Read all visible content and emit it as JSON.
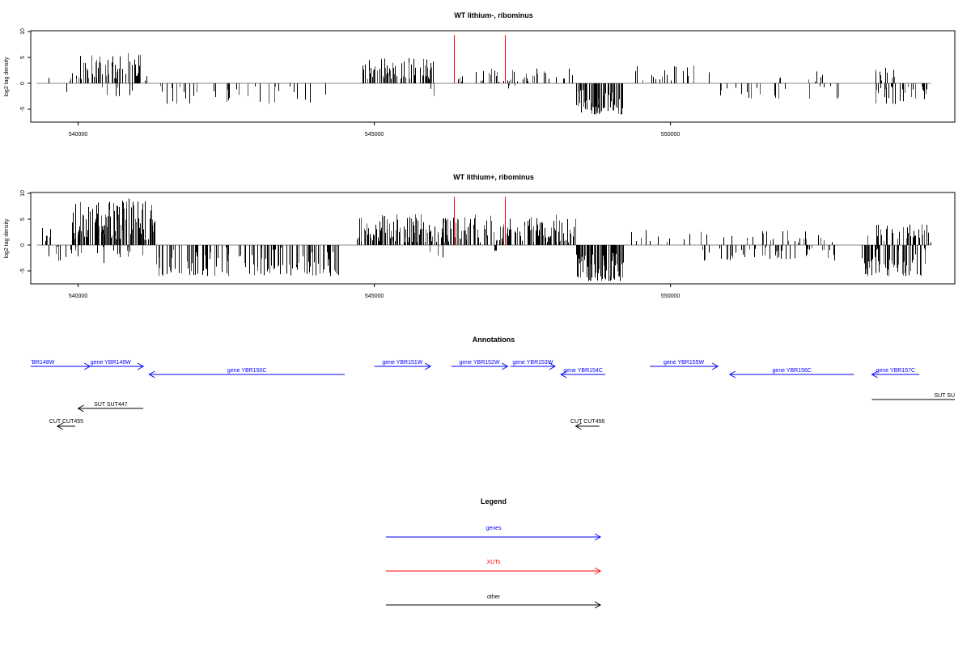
{
  "colors": {
    "genes": "#0000ff",
    "xuts": "#ff0000",
    "other": "#000000"
  },
  "chart_data": [
    {
      "type": "bar",
      "title": "WT lithium-, ribominus",
      "xlabel": "",
      "ylabel": "log2 tag density",
      "xlim": [
        539200,
        554800
      ],
      "ylim": [
        -7.5,
        10
      ],
      "yticks": [
        "10",
        "5",
        "0",
        "-5"
      ],
      "yticks_values": [
        10,
        5,
        0,
        -5
      ],
      "xticks": [
        "540000",
        "545000",
        "550000"
      ],
      "xticks_values": [
        540000,
        545000,
        550000
      ],
      "xut_markers": [
        546350,
        547200
      ],
      "regions": [
        {
          "start": 539500,
          "end": 539550,
          "min": 0.5,
          "max": 1.2,
          "density": 1
        },
        {
          "start": 539850,
          "end": 540000,
          "min": 0.5,
          "max": 2.5,
          "density": 6
        },
        {
          "start": 540000,
          "end": 541100,
          "min": 0.8,
          "max": 6.0,
          "density": 60
        },
        {
          "start": 539800,
          "end": 541000,
          "min": -2.5,
          "max": -0.3,
          "density": 10
        },
        {
          "start": 541100,
          "end": 541200,
          "min": 0.5,
          "max": 2.0,
          "density": 2
        },
        {
          "start": 541300,
          "end": 544300,
          "min": -4.0,
          "max": -0.3,
          "density": 35
        },
        {
          "start": 544800,
          "end": 546000,
          "min": 0.8,
          "max": 5.0,
          "density": 80
        },
        {
          "start": 545800,
          "end": 546000,
          "min": -3.0,
          "max": -0.5,
          "density": 2
        },
        {
          "start": 546100,
          "end": 546500,
          "min": 0.3,
          "max": 1.5,
          "density": 4
        },
        {
          "start": 546700,
          "end": 548400,
          "min": 0.3,
          "max": 3.0,
          "density": 45
        },
        {
          "start": 547100,
          "end": 547400,
          "min": -1.0,
          "max": -0.2,
          "density": 3
        },
        {
          "start": 548400,
          "end": 549200,
          "min": -6.0,
          "max": -1.0,
          "density": 80
        },
        {
          "start": 549400,
          "end": 550400,
          "min": 0.5,
          "max": 3.5,
          "density": 18
        },
        {
          "start": 550400,
          "end": 552700,
          "min": 0.3,
          "max": 2.5,
          "density": 8
        },
        {
          "start": 550800,
          "end": 552900,
          "min": -3.0,
          "max": -0.5,
          "density": 20
        },
        {
          "start": 553400,
          "end": 553800,
          "min": 0.5,
          "max": 3.5,
          "density": 12
        },
        {
          "start": 553400,
          "end": 554400,
          "min": -4.0,
          "max": -0.5,
          "density": 35
        }
      ]
    },
    {
      "type": "bar",
      "title": "WT lithium+, ribominus",
      "xlabel": "",
      "ylabel": "log2 tag density",
      "xlim": [
        539200,
        554800
      ],
      "ylim": [
        -7.5,
        10
      ],
      "yticks": [
        "10",
        "5",
        "0",
        "-5"
      ],
      "yticks_values": [
        10,
        5,
        0,
        -5
      ],
      "xticks": [
        "540000",
        "545000",
        "550000"
      ],
      "xticks_values": [
        540000,
        545000,
        550000
      ],
      "xut_markers": [
        546350,
        547200
      ],
      "regions": [
        {
          "start": 539350,
          "end": 539600,
          "min": 0.5,
          "max": 3.5,
          "density": 6
        },
        {
          "start": 539900,
          "end": 541300,
          "min": 1.0,
          "max": 9.0,
          "density": 150
        },
        {
          "start": 539500,
          "end": 541200,
          "min": -3.5,
          "max": -0.3,
          "density": 25
        },
        {
          "start": 541300,
          "end": 544400,
          "min": -6.0,
          "max": -0.3,
          "density": 120
        },
        {
          "start": 544700,
          "end": 546300,
          "min": 0.5,
          "max": 6.0,
          "density": 140
        },
        {
          "start": 545900,
          "end": 546200,
          "min": -2.5,
          "max": -0.4,
          "density": 3
        },
        {
          "start": 546300,
          "end": 548400,
          "min": 0.5,
          "max": 6.0,
          "density": 130
        },
        {
          "start": 546900,
          "end": 547200,
          "min": -1.2,
          "max": -0.2,
          "density": 3
        },
        {
          "start": 548400,
          "end": 549200,
          "min": -7.0,
          "max": -1.0,
          "density": 100
        },
        {
          "start": 549300,
          "end": 552800,
          "min": 0.5,
          "max": 3.0,
          "density": 40
        },
        {
          "start": 550500,
          "end": 552800,
          "min": -3.0,
          "max": -0.4,
          "density": 45
        },
        {
          "start": 553300,
          "end": 554400,
          "min": 0.5,
          "max": 4.5,
          "density": 45
        },
        {
          "start": 553200,
          "end": 554300,
          "min": -6.0,
          "max": -0.5,
          "density": 70
        }
      ]
    }
  ],
  "annotations": {
    "title": "Annotations",
    "features": [
      {
        "label": "'BR148W",
        "type": "gene",
        "start": 539200,
        "end": 540200,
        "strand": "+",
        "row": 0
      },
      {
        "label": "gene YBR149W",
        "type": "gene",
        "start": 540000,
        "end": 541100,
        "strand": "+",
        "row": 0
      },
      {
        "label": "gene YBR150C",
        "type": "gene",
        "start": 541200,
        "end": 544500,
        "strand": "-",
        "row": 1
      },
      {
        "label": "gene YBR151W",
        "type": "gene",
        "start": 545000,
        "end": 545950,
        "strand": "+",
        "row": 0
      },
      {
        "label": "gene YBR152W",
        "type": "gene",
        "start": 546300,
        "end": 547250,
        "strand": "+",
        "row": 0
      },
      {
        "label": "gene YBR153W",
        "type": "gene",
        "start": 547300,
        "end": 548050,
        "strand": "+",
        "row": 0
      },
      {
        "label": "gene YBR154C",
        "type": "gene",
        "start": 548150,
        "end": 548900,
        "strand": "-",
        "row": 1
      },
      {
        "label": "gene YBR155W",
        "type": "gene",
        "start": 549650,
        "end": 550800,
        "strand": "+",
        "row": 0
      },
      {
        "label": "gene YBR156C",
        "type": "gene",
        "start": 551000,
        "end": 553100,
        "strand": "-",
        "row": 1
      },
      {
        "label": "gene YBR157C",
        "type": "gene",
        "start": 553400,
        "end": 554200,
        "strand": "-",
        "row": 1
      },
      {
        "label": "SUT SUT447",
        "type": "other",
        "start": 540000,
        "end": 541100,
        "strand": "-",
        "row": 2
      },
      {
        "label": "SUT SU",
        "type": "other",
        "start": 553400,
        "end": 554800,
        "strand": "+",
        "row": 3
      },
      {
        "label": "CUT CUT455",
        "type": "other",
        "start": 539650,
        "end": 539950,
        "strand": "-",
        "row": 4
      },
      {
        "label": "CUT CUT456",
        "type": "other",
        "start": 548400,
        "end": 548800,
        "strand": "-",
        "row": 4
      }
    ]
  },
  "legend": {
    "title": "Legend",
    "items": [
      {
        "label": "genes",
        "color": "#0000ff"
      },
      {
        "label": "XUTs",
        "color": "#ff0000"
      },
      {
        "label": "other",
        "color": "#000000"
      }
    ]
  }
}
